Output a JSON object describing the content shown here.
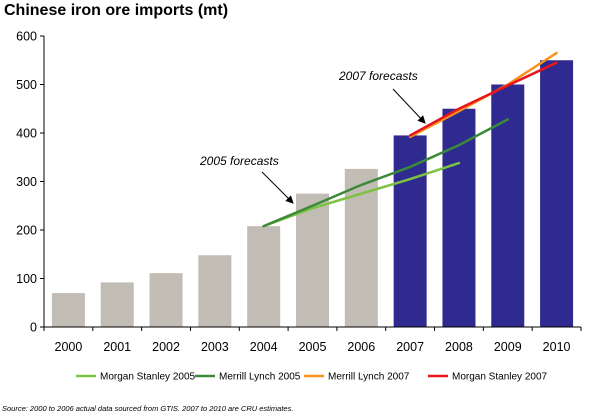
{
  "chart_data": {
    "type": "bar",
    "title": "Chinese iron ore imports (mt)",
    "xlabel": "",
    "ylabel": "",
    "ylim": [
      0,
      600
    ],
    "yticks": [
      0,
      100,
      200,
      300,
      400,
      500,
      600
    ],
    "grid": false,
    "legend": "bottom",
    "categories": [
      "2000",
      "2001",
      "2002",
      "2003",
      "2004",
      "2005",
      "2006",
      "2007",
      "2008",
      "2009",
      "2010"
    ],
    "bars": {
      "values": [
        70,
        92,
        111,
        148,
        208,
        275,
        326,
        395,
        450,
        500,
        550
      ],
      "colors": [
        "#c2bdb4",
        "#c2bdb4",
        "#c2bdb4",
        "#c2bdb4",
        "#c2bdb4",
        "#c2bdb4",
        "#c2bdb4",
        "#2e2a8f",
        "#2e2a8f",
        "#2e2a8f",
        "#2e2a8f"
      ]
    },
    "series": [
      {
        "name": "Morgan Stanley 2005",
        "color": "#7dc242",
        "x": [
          "2004",
          "2005",
          "2006",
          "2007",
          "2008"
        ],
        "values": [
          208,
          245,
          275,
          305,
          338
        ]
      },
      {
        "name": "Merrill Lynch 2005",
        "color": "#3a8a3a",
        "x": [
          "2004",
          "2005",
          "2006",
          "2007",
          "2008",
          "2009"
        ],
        "values": [
          208,
          250,
          293,
          330,
          375,
          428
        ]
      },
      {
        "name": "Merrill Lynch 2007",
        "color": "#f7941d",
        "x": [
          "2007",
          "2008",
          "2009",
          "2010"
        ],
        "values": [
          392,
          445,
          500,
          565
        ]
      },
      {
        "name": "Morgan Stanley 2007",
        "color": "#e8151b",
        "x": [
          "2007",
          "2008",
          "2009",
          "2010"
        ],
        "values": [
          395,
          450,
          498,
          545
        ]
      }
    ],
    "annotations": [
      {
        "text": "2007 forecasts",
        "points_to": "2007"
      },
      {
        "text": "2005 forecasts",
        "points_to": "2004-2005"
      }
    ]
  },
  "source_note": "Source: 2000 to 2006 actual data sourced from GTIS.  2007 to 2010 are CRU estimates."
}
